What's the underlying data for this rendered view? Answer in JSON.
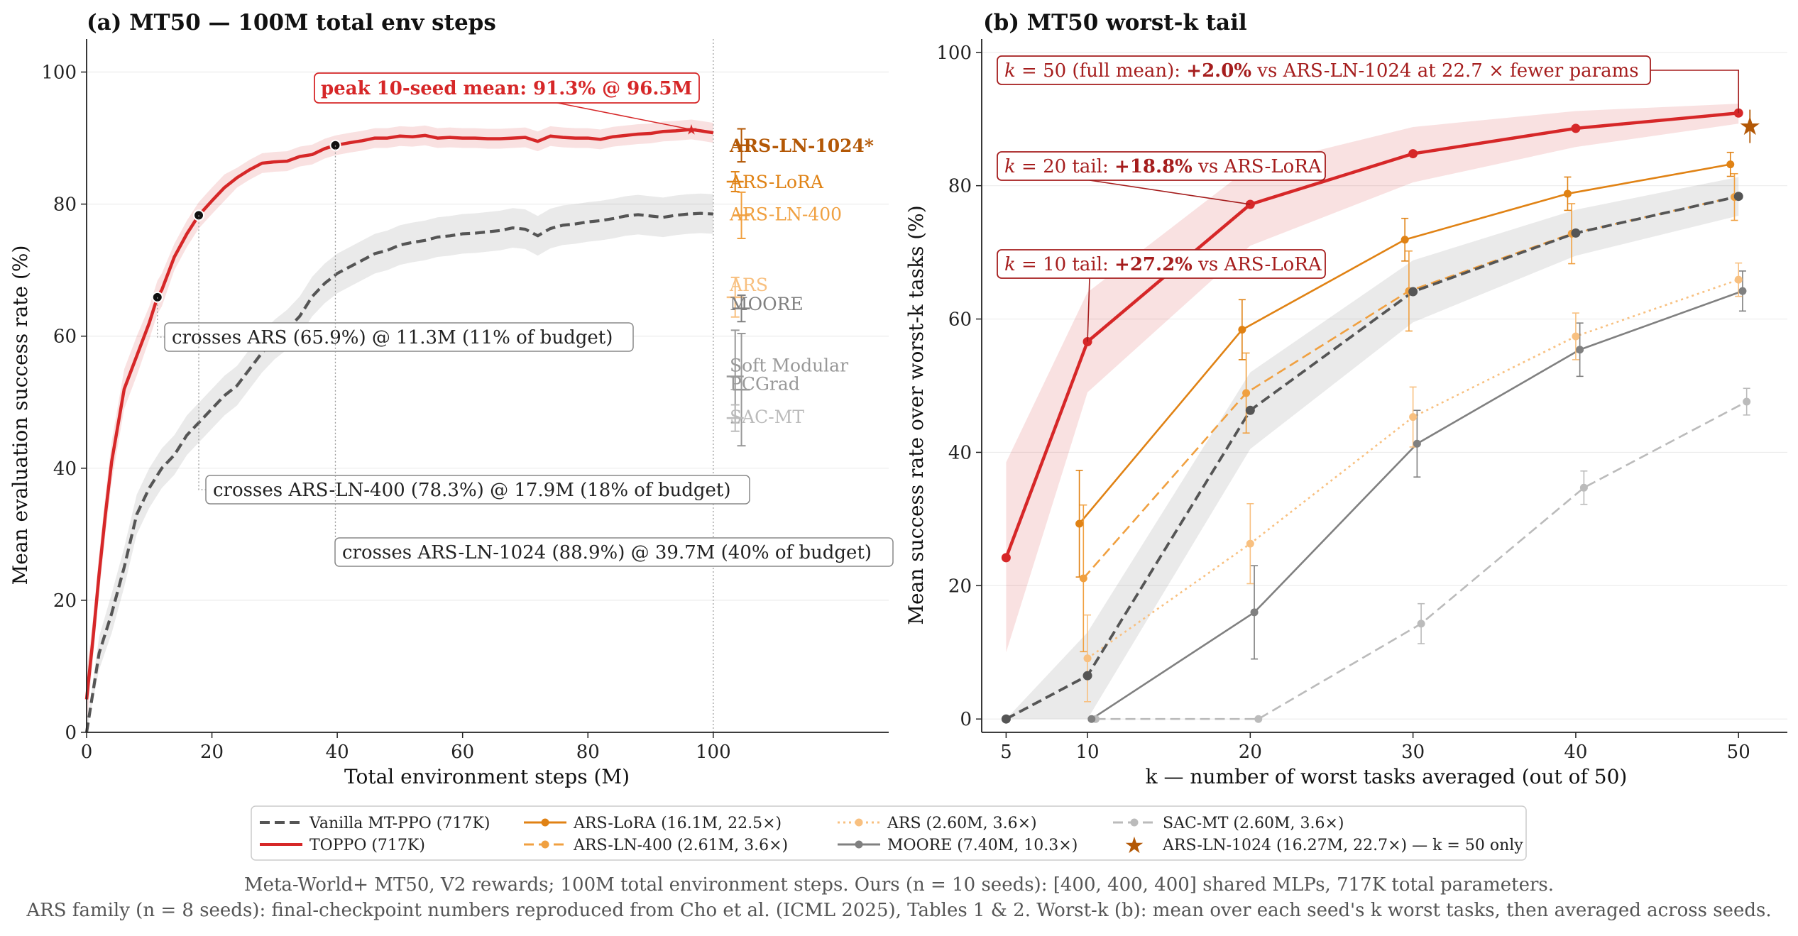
{
  "figure": {
    "caption_line1": "Meta-World+ MT50, V2 rewards; 100M total environment steps.  Ours (n = 10 seeds): [400, 400, 400] shared MLPs, 717K total parameters.",
    "caption_line2": "ARS family (n = 8 seeds): final-checkpoint numbers reproduced from Cho et al. (ICML 2025), Tables 1 & 2.  Worst-k (b): mean over each seed's k worst tasks, then averaged across seeds."
  },
  "legend": [
    {
      "label": "Vanilla MT-PPO (717K)",
      "color": "#555555",
      "style": "dashed",
      "marker": "none"
    },
    {
      "label": "TOPPO (717K)",
      "color": "#d62728",
      "style": "solid",
      "marker": "none"
    },
    {
      "label": "ARS-LoRA (16.1M, 22.5×)",
      "color": "#e08214",
      "style": "solid",
      "marker": "circle"
    },
    {
      "label": "ARS-LN-400 (2.61M, 3.6×)",
      "color": "#f0a040",
      "style": "dashed",
      "marker": "circle"
    },
    {
      "label": "ARS (2.60M, 3.6×)",
      "color": "#f8c080",
      "style": "dotted",
      "marker": "circle"
    },
    {
      "label": "MOORE (7.40M, 10.3×)",
      "color": "#808080",
      "style": "solid",
      "marker": "circle"
    },
    {
      "label": "SAC-MT (2.60M, 3.6×)",
      "color": "#bbbbbb",
      "style": "dashed",
      "marker": "circle"
    },
    {
      "label": "ARS-LN-1024 (16.27M, 22.7×) — k = 50 only",
      "color": "#b35806",
      "style": "none",
      "marker": "star"
    }
  ],
  "chart_data": [
    {
      "type": "line",
      "title": "(a) MT50 — 100M total env steps",
      "xlabel": "Total environment steps (M)",
      "ylabel": "Mean evaluation success rate (%)",
      "xlim": [
        0,
        128
      ],
      "ylim": [
        0,
        105
      ],
      "xticks": [
        0,
        20,
        40,
        60,
        80,
        100
      ],
      "yticks": [
        0,
        20,
        40,
        60,
        80,
        100
      ],
      "grid": "y",
      "series": [
        {
          "name": "TOPPO (717K)",
          "color": "#d62728",
          "style": "solid",
          "x": [
            0,
            1,
            2,
            3,
            4,
            6,
            8,
            10,
            11.3,
            12,
            14,
            16,
            17.9,
            20,
            22,
            24,
            26,
            28,
            30,
            32,
            34,
            36,
            38,
            39.7,
            42,
            44,
            46,
            48,
            50,
            52,
            54,
            56,
            58,
            60,
            62,
            64,
            66,
            68,
            70,
            72,
            74,
            76,
            78,
            80,
            82,
            84,
            86,
            88,
            90,
            92,
            94,
            96.5,
            98,
            100
          ],
          "y": [
            5,
            14,
            24,
            33,
            41,
            52,
            57,
            62,
            65.9,
            67,
            72,
            75.5,
            78.3,
            80.5,
            82.5,
            84,
            85.2,
            86.2,
            86.4,
            86.5,
            87.2,
            87.5,
            88.4,
            88.9,
            89.3,
            89.6,
            90,
            90,
            90.3,
            90.2,
            90.4,
            90,
            90.1,
            90,
            90,
            89.9,
            89.9,
            90,
            90.1,
            89.5,
            90.3,
            90.1,
            90,
            90,
            89.8,
            90.2,
            90.4,
            90.6,
            90.7,
            91,
            91.1,
            91.3,
            91.1,
            90.8
          ],
          "band": [
            4,
            3,
            3,
            3,
            3,
            3,
            3,
            2.5,
            2.5,
            2.5,
            2,
            2,
            2,
            2,
            2,
            1.5,
            1.5,
            1.5,
            1.5,
            1.5,
            1.5,
            1.5,
            1.5,
            1.5,
            1.5,
            1.5,
            1.5,
            1.5,
            1.5,
            1.5,
            1.5,
            1.5,
            1.5,
            1.5,
            1.5,
            1.5,
            1.5,
            1.5,
            1.5,
            1.5,
            1.5,
            1.5,
            1.5,
            1.5,
            1.5,
            1.5,
            1.5,
            1.5,
            1.5,
            1.5,
            1.5,
            1.5,
            1.5,
            1.5
          ]
        },
        {
          "name": "Vanilla MT-PPO (717K)",
          "color": "#555555",
          "style": "dashed",
          "x": [
            0,
            2,
            4,
            6,
            8,
            10,
            12,
            14,
            16,
            18,
            20,
            22,
            24,
            26,
            28,
            30,
            32,
            34,
            36,
            38,
            40,
            42,
            44,
            46,
            48,
            50,
            52,
            54,
            56,
            58,
            60,
            62,
            64,
            66,
            68,
            70,
            72,
            74,
            76,
            78,
            80,
            82,
            84,
            86,
            88,
            90,
            92,
            94,
            96,
            98,
            100
          ],
          "y": [
            0,
            12,
            18,
            25,
            33,
            37,
            40,
            42,
            45,
            47,
            49,
            51,
            52.5,
            55,
            57.5,
            59.5,
            61,
            63,
            66,
            68,
            69.5,
            70.5,
            71.5,
            72.5,
            73,
            73.8,
            74.2,
            74.5,
            75,
            75.2,
            75.5,
            75.6,
            75.8,
            76,
            76.4,
            76.2,
            75.2,
            76.3,
            76.8,
            77,
            77.3,
            77.5,
            77.8,
            78.2,
            78.4,
            78.2,
            78,
            78.3,
            78.5,
            78.6,
            78.5
          ],
          "band": [
            1,
            2.5,
            3,
            3,
            3,
            3,
            3,
            3,
            3,
            3,
            3,
            3,
            3,
            3,
            3,
            3,
            3,
            3,
            3,
            3,
            3,
            3,
            3,
            3,
            3,
            3,
            3,
            3,
            3,
            3,
            3,
            3,
            3,
            3,
            3,
            3,
            3,
            3,
            3,
            3,
            3,
            3,
            3,
            3,
            3,
            3,
            3,
            3,
            3,
            3,
            3
          ]
        }
      ],
      "baselines": [
        {
          "name": "ARS-LN-1024*",
          "value": 88.9,
          "err": 2.5,
          "x": 104.5,
          "color": "#b35806",
          "bold": true
        },
        {
          "name": "ARS-LoRA",
          "value": 83.4,
          "err": 1.5,
          "x": 103.5,
          "color": "#e08214"
        },
        {
          "name": "ARS-LN-400",
          "value": 78.3,
          "err": 3.5,
          "x": 104.5,
          "color": "#f0a040"
        },
        {
          "name": "ARS",
          "value": 65.9,
          "err": 3.0,
          "x": 103.5,
          "color": "#f8c080"
        },
        {
          "name": "MOORE",
          "value": 64.2,
          "err": 2.0,
          "x": 104.5,
          "color": "#808080"
        },
        {
          "name": "Soft Modular",
          "value": 53.9,
          "err": 7.0,
          "x": 103.5,
          "color": "#999999"
        },
        {
          "name": "PCGrad",
          "value": 51.9,
          "err": 8.5,
          "x": 104.5,
          "color": "#999999"
        },
        {
          "name": "SAC-MT",
          "value": 47.6,
          "err": 2.0,
          "x": 103.5,
          "color": "#bbbbbb"
        }
      ],
      "vline_x": 100,
      "crossing_points": [
        {
          "x": 11.3,
          "y": 65.9,
          "label": "crosses ARS (65.9%)  @ 11.3M  (11% of budget)"
        },
        {
          "x": 17.9,
          "y": 78.3,
          "label": "crosses ARS-LN-400 (78.3%)  @ 17.9M  (18% of budget)"
        },
        {
          "x": 39.7,
          "y": 88.9,
          "label": "crosses ARS-LN-1024 (88.9%)  @ 39.7M  (40% of budget)"
        }
      ],
      "peak": {
        "x": 96.5,
        "y": 91.3,
        "label": "peak 10-seed mean: 91.3% @ 96.5M"
      }
    },
    {
      "type": "line",
      "title": "(b) MT50 worst-k tail",
      "xlabel": "k — number of worst tasks averaged (out of 50)",
      "ylabel": "Mean success rate over worst-k tasks (%)",
      "xlim": [
        3.5,
        53
      ],
      "ylim": [
        -2,
        102
      ],
      "xticks": [
        5,
        10,
        20,
        30,
        40,
        50
      ],
      "yticks": [
        0,
        20,
        40,
        60,
        80,
        100
      ],
      "grid": "y",
      "series": [
        {
          "name": "TOPPO (717K)",
          "color": "#d62728",
          "style": "solid",
          "x": [
            5,
            10,
            20,
            30,
            40,
            50
          ],
          "y": [
            24.2,
            56.6,
            77.2,
            84.8,
            88.6,
            90.9
          ],
          "lo": [
            10,
            49,
            71,
            80.5,
            85.8,
            89.3
          ],
          "hi": [
            38.5,
            64,
            82.8,
            88.8,
            91.2,
            92.3
          ]
        },
        {
          "name": "Vanilla MT-PPO (717K)",
          "color": "#555555",
          "style": "dashed",
          "x": [
            5,
            10,
            20,
            30,
            40,
            50
          ],
          "y": [
            0,
            6.5,
            46.3,
            64.1,
            72.9,
            78.4
          ],
          "lo": [
            0,
            0,
            40.5,
            59.5,
            69.5,
            75.5
          ],
          "hi": [
            0,
            13,
            52,
            68.8,
            76.4,
            81.3
          ]
        },
        {
          "name": "ARS-LoRA",
          "color": "#e08214",
          "style": "solid",
          "x": [
            9.5,
            19.5,
            29.5,
            39.5,
            49.5
          ],
          "y": [
            29.3,
            58.4,
            71.9,
            78.8,
            83.2
          ],
          "err": [
            8,
            4.5,
            3.2,
            2.5,
            1.8
          ]
        },
        {
          "name": "ARS-LN-400",
          "color": "#f0a040",
          "style": "dashed",
          "x": [
            9.75,
            19.75,
            29.75,
            39.75,
            49.75
          ],
          "y": [
            21.1,
            48.9,
            64.2,
            72.8,
            78.3
          ],
          "err": [
            11,
            6,
            6,
            4.5,
            3.5
          ]
        },
        {
          "name": "ARS",
          "color": "#f8c080",
          "style": "dotted",
          "x": [
            10,
            20,
            30,
            40,
            50
          ],
          "y": [
            9.1,
            26.3,
            45.3,
            57.4,
            65.9
          ],
          "err": [
            6.5,
            6,
            4.5,
            3.5,
            2.5
          ]
        },
        {
          "name": "MOORE",
          "color": "#808080",
          "style": "solid",
          "x": [
            10.25,
            20.25,
            30.25,
            40.25,
            50.25
          ],
          "y": [
            0,
            16,
            41.3,
            55.4,
            64.2
          ],
          "err": [
            0,
            7,
            5,
            4,
            3
          ]
        },
        {
          "name": "SAC-MT",
          "color": "#bbbbbb",
          "style": "dashed",
          "x": [
            10.5,
            20.5,
            30.5,
            40.5,
            50.5
          ],
          "y": [
            0,
            0,
            14.3,
            34.7,
            47.6
          ],
          "err": [
            0,
            0,
            3,
            2.5,
            2
          ]
        }
      ],
      "star": {
        "name": "ARS-LN-1024",
        "x": 50.7,
        "y": 88.9,
        "err": 2.5,
        "color": "#b35806"
      },
      "annotations": [
        {
          "k": "k",
          "text1": " = 50 (full mean):  ",
          "bold": "+2.0%",
          "text2": " vs ARS-LN-1024 at 22.7 ×  fewer params"
        },
        {
          "k": "k",
          "text1": " = 20 tail:  ",
          "bold": "+18.8%",
          "text2": " vs ARS-LoRA"
        },
        {
          "k": "k",
          "text1": " = 10 tail:  ",
          "bold": "+27.2%",
          "text2": " vs ARS-LoRA"
        }
      ]
    }
  ]
}
